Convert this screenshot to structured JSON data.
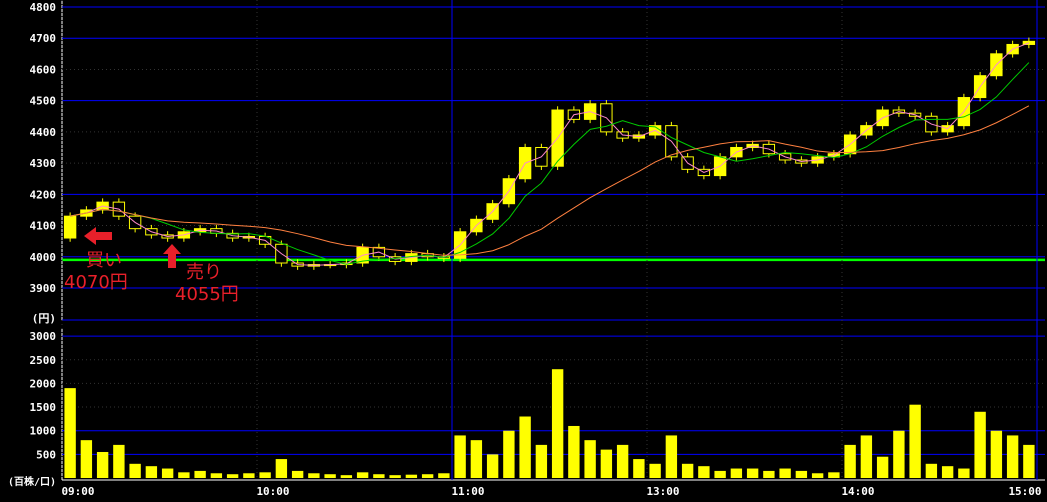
{
  "chart_data": {
    "type": "candlestick",
    "price_unit": "(円)",
    "volume_unit": "(百株/口)",
    "price_ylim": [
      3900,
      4800
    ],
    "price_ticks": [
      "4800",
      "4700",
      "4600",
      "4500",
      "4400",
      "4300",
      "4200",
      "4100",
      "4000",
      "3900"
    ],
    "volume_ylim": [
      0,
      3000
    ],
    "volume_ticks": [
      "3000",
      "2500",
      "2000",
      "1500",
      "1000",
      "500"
    ],
    "x_ticks": [
      "09:00",
      "10:00",
      "11:00",
      "13:00",
      "14:00",
      "15:00"
    ],
    "reference_line": 3990,
    "open": 4060,
    "interval_minutes": 5,
    "closes": [
      4130,
      4150,
      4175,
      4130,
      4090,
      4070,
      4060,
      4080,
      4090,
      4075,
      4060,
      4065,
      4040,
      3980,
      3970,
      3975,
      3975,
      3980,
      4030,
      4000,
      3985,
      4010,
      4000,
      3995,
      4080,
      4120,
      4170,
      4250,
      4350,
      4290,
      4470,
      4440,
      4490,
      4400,
      4380,
      4390,
      4420,
      4320,
      4280,
      4260,
      4320,
      4350,
      4360,
      4330,
      4310,
      4300,
      4320,
      4330,
      4390,
      4420,
      4470,
      4460,
      4450,
      4400,
      4420,
      4510,
      4580,
      4650,
      4680,
      4690
    ],
    "volumes": [
      1900,
      800,
      550,
      700,
      300,
      250,
      200,
      120,
      150,
      100,
      80,
      100,
      120,
      400,
      150,
      100,
      80,
      60,
      120,
      80,
      60,
      70,
      80,
      100,
      900,
      800,
      500,
      1000,
      1300,
      700,
      2300,
      1100,
      800,
      600,
      700,
      400,
      300,
      900,
      300,
      250,
      150,
      200,
      200,
      150,
      200,
      150,
      100,
      120,
      700,
      900,
      450,
      1000,
      1550,
      300,
      250,
      200,
      1400,
      1000,
      900,
      700
    ],
    "colors": {
      "candle": "#ffff00",
      "ma_short": "#ff88cc",
      "ma_mid": "#00cc00",
      "ma_long": "#ff8040",
      "grid": "#0000ff",
      "reference": "#00ff00",
      "annotation": "#e8202a"
    },
    "annotations": [
      {
        "label": "買い",
        "price_label": "4070円",
        "time": "09:05",
        "price": 4070,
        "arrow": "left"
      },
      {
        "label": "売り",
        "price_label": "4055円",
        "time": "09:25",
        "price": 4055,
        "arrow": "up"
      }
    ]
  }
}
